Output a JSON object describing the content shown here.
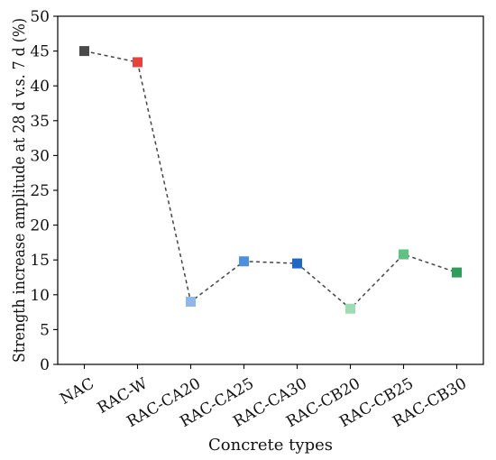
{
  "chart_data": {
    "type": "line",
    "title": "",
    "xlabel": "Concrete types",
    "ylabel": "Strength increase amplitude at 28 d v.s. 7 d (%)",
    "categories": [
      "NAC",
      "RAC-W",
      "RAC-CA20",
      "RAC-CA25",
      "RAC-CA30",
      "RAC-CB20",
      "RAC-CB25",
      "RAC-CB30"
    ],
    "values": [
      45.0,
      43.4,
      9.0,
      14.8,
      14.5,
      8.0,
      15.8,
      13.2
    ],
    "point_colors": [
      "#4a4a4a",
      "#e8413e",
      "#8fb7ea",
      "#4e8fe0",
      "#1f67c8",
      "#9bdcb0",
      "#5cc383",
      "#2e9f5a"
    ],
    "line_color": "#444444",
    "line_style": "dashed",
    "marker": "square",
    "ylim": [
      0,
      50
    ],
    "yticks": [
      0,
      5,
      10,
      15,
      20,
      25,
      30,
      35,
      40,
      45,
      50
    ],
    "grid": false,
    "legend": "none"
  }
}
